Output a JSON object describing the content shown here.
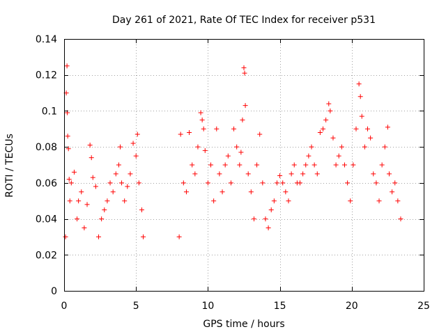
{
  "chart_data": {
    "type": "scatter",
    "title": "Day 261 of 2021, Rate Of TEC Index for receiver p531",
    "xlabel": "GPS time / hours",
    "ylabel": "ROTI / TECUs",
    "xlim": [
      0,
      25
    ],
    "ylim": [
      0,
      0.14
    ],
    "xticks": [
      0,
      5,
      10,
      15,
      20,
      25
    ],
    "xtick_labels": [
      "0",
      "5",
      "10",
      "15",
      "20",
      "25"
    ],
    "yticks": [
      0,
      0.02,
      0.04,
      0.06,
      0.08,
      0.1,
      0.12,
      0.14
    ],
    "ytick_labels": [
      "0",
      "0.02",
      "0.04",
      "0.06",
      "0.08",
      "0.1",
      "0.12",
      "0.14"
    ],
    "grid": true,
    "marker": "plus",
    "color": "#ff0000",
    "series": [
      {
        "points": [
          [
            0.1,
            0.03
          ],
          [
            0.15,
            0.11
          ],
          [
            0.2,
            0.125
          ],
          [
            0.22,
            0.099
          ],
          [
            0.25,
            0.086
          ],
          [
            0.3,
            0.079
          ],
          [
            0.35,
            0.062
          ],
          [
            0.4,
            0.05
          ],
          [
            0.5,
            0.06
          ],
          [
            0.7,
            0.066
          ],
          [
            0.9,
            0.04
          ],
          [
            1.0,
            0.05
          ],
          [
            1.2,
            0.055
          ],
          [
            1.4,
            0.035
          ],
          [
            1.6,
            0.048
          ],
          [
            1.8,
            0.081
          ],
          [
            1.9,
            0.074
          ],
          [
            2.0,
            0.063
          ],
          [
            2.2,
            0.058
          ],
          [
            2.4,
            0.03
          ],
          [
            2.6,
            0.04
          ],
          [
            2.8,
            0.045
          ],
          [
            3.0,
            0.05
          ],
          [
            3.2,
            0.06
          ],
          [
            3.4,
            0.055
          ],
          [
            3.6,
            0.065
          ],
          [
            3.8,
            0.07
          ],
          [
            3.9,
            0.08
          ],
          [
            4.0,
            0.06
          ],
          [
            4.2,
            0.05
          ],
          [
            4.4,
            0.058
          ],
          [
            4.6,
            0.065
          ],
          [
            4.8,
            0.082
          ],
          [
            5.0,
            0.075
          ],
          [
            5.1,
            0.087
          ],
          [
            5.2,
            0.06
          ],
          [
            5.4,
            0.045
          ],
          [
            5.5,
            0.03
          ],
          [
            8.0,
            0.03
          ],
          [
            8.1,
            0.087
          ],
          [
            8.3,
            0.06
          ],
          [
            8.5,
            0.055
          ],
          [
            8.7,
            0.088
          ],
          [
            8.9,
            0.07
          ],
          [
            9.1,
            0.065
          ],
          [
            9.3,
            0.08
          ],
          [
            9.5,
            0.099
          ],
          [
            9.6,
            0.095
          ],
          [
            9.7,
            0.09
          ],
          [
            9.8,
            0.078
          ],
          [
            10.0,
            0.06
          ],
          [
            10.2,
            0.07
          ],
          [
            10.4,
            0.05
          ],
          [
            10.6,
            0.09
          ],
          [
            10.8,
            0.065
          ],
          [
            11.0,
            0.055
          ],
          [
            11.2,
            0.07
          ],
          [
            11.4,
            0.075
          ],
          [
            11.6,
            0.06
          ],
          [
            11.8,
            0.09
          ],
          [
            12.0,
            0.08
          ],
          [
            12.2,
            0.07
          ],
          [
            12.3,
            0.077
          ],
          [
            12.4,
            0.095
          ],
          [
            12.5,
            0.124
          ],
          [
            12.55,
            0.121
          ],
          [
            12.6,
            0.103
          ],
          [
            12.8,
            0.065
          ],
          [
            13.0,
            0.055
          ],
          [
            13.2,
            0.04
          ],
          [
            13.4,
            0.07
          ],
          [
            13.6,
            0.087
          ],
          [
            13.8,
            0.06
          ],
          [
            14.0,
            0.04
          ],
          [
            14.2,
            0.035
          ],
          [
            14.4,
            0.045
          ],
          [
            14.6,
            0.05
          ],
          [
            14.8,
            0.06
          ],
          [
            15.0,
            0.064
          ],
          [
            15.2,
            0.06
          ],
          [
            15.4,
            0.055
          ],
          [
            15.6,
            0.05
          ],
          [
            15.8,
            0.065
          ],
          [
            16.0,
            0.07
          ],
          [
            16.2,
            0.06
          ],
          [
            16.4,
            0.06
          ],
          [
            16.6,
            0.065
          ],
          [
            16.8,
            0.07
          ],
          [
            17.0,
            0.075
          ],
          [
            17.2,
            0.08
          ],
          [
            17.4,
            0.07
          ],
          [
            17.6,
            0.065
          ],
          [
            17.8,
            0.088
          ],
          [
            18.0,
            0.09
          ],
          [
            18.2,
            0.095
          ],
          [
            18.4,
            0.104
          ],
          [
            18.5,
            0.1
          ],
          [
            18.7,
            0.085
          ],
          [
            18.9,
            0.07
          ],
          [
            19.1,
            0.075
          ],
          [
            19.3,
            0.08
          ],
          [
            19.5,
            0.07
          ],
          [
            19.7,
            0.06
          ],
          [
            19.9,
            0.05
          ],
          [
            20.1,
            0.07
          ],
          [
            20.3,
            0.09
          ],
          [
            20.5,
            0.115
          ],
          [
            20.6,
            0.108
          ],
          [
            20.7,
            0.097
          ],
          [
            20.9,
            0.08
          ],
          [
            21.1,
            0.09
          ],
          [
            21.3,
            0.085
          ],
          [
            21.5,
            0.065
          ],
          [
            21.7,
            0.06
          ],
          [
            21.9,
            0.05
          ],
          [
            22.1,
            0.07
          ],
          [
            22.3,
            0.08
          ],
          [
            22.5,
            0.091
          ],
          [
            22.6,
            0.065
          ],
          [
            22.8,
            0.055
          ],
          [
            23.0,
            0.06
          ],
          [
            23.2,
            0.05
          ],
          [
            23.4,
            0.04
          ]
        ]
      }
    ]
  }
}
